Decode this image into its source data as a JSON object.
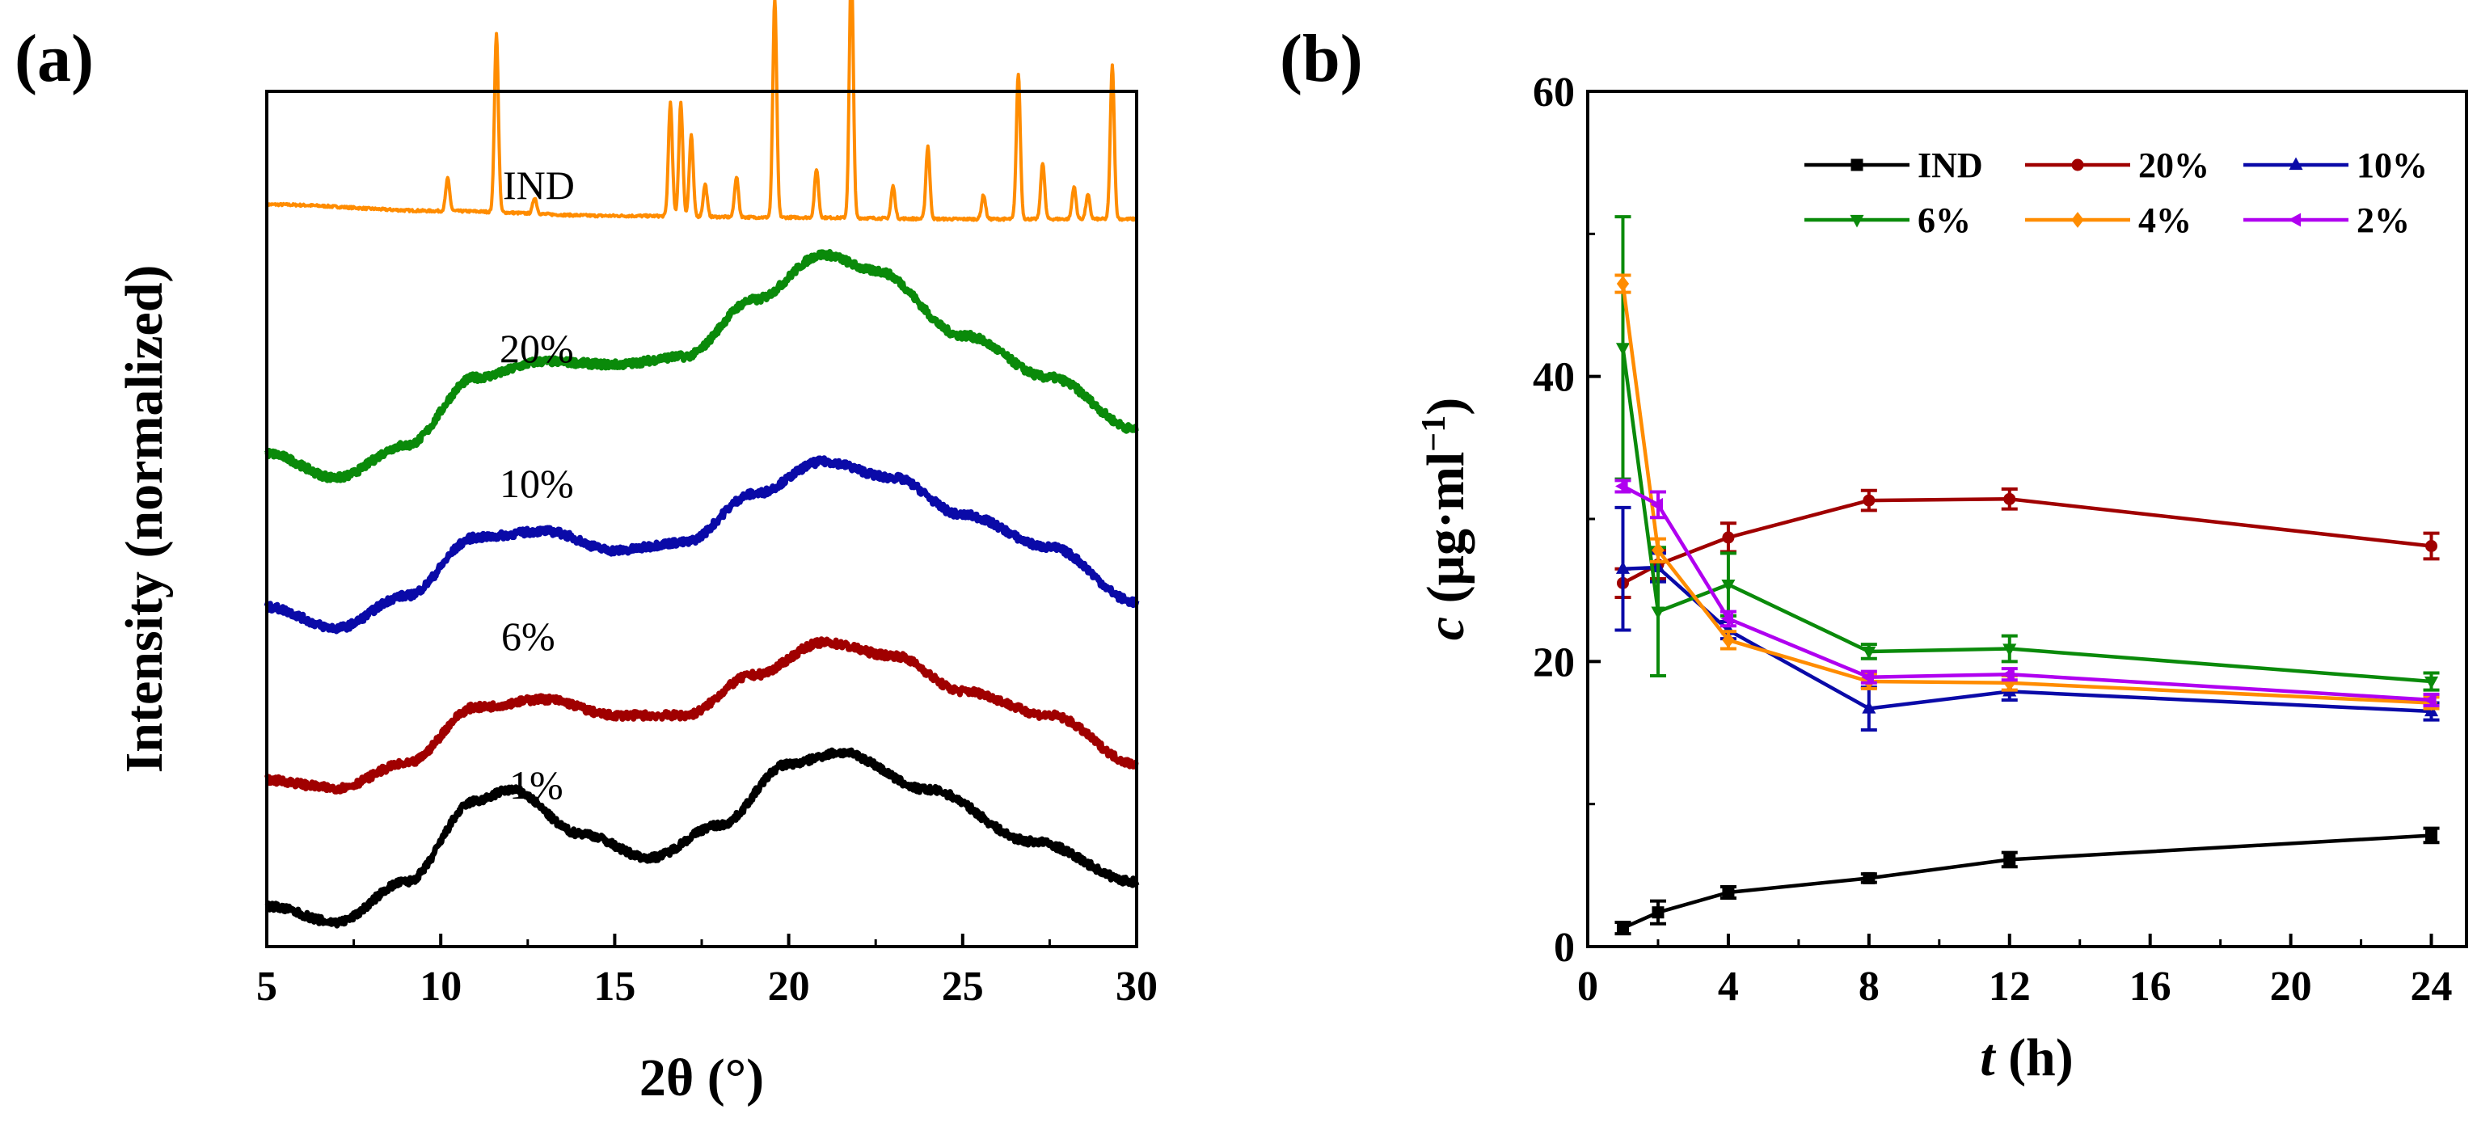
{
  "panels": {
    "a": {
      "label": "(a)"
    },
    "b": {
      "label": "(b)"
    }
  },
  "chart_data": [
    {
      "type": "line",
      "xlabel": "2θ (°)",
      "ylabel": "Intensity (normalized)",
      "xlim": [
        5,
        30
      ],
      "x_ticks": [
        "5",
        "10",
        "15",
        "20",
        "25",
        "30"
      ],
      "y_ticks_shown": false,
      "grid": false,
      "series": [
        {
          "name": "IND",
          "color": "#ff8c00",
          "offset": 4.3,
          "baseline": [
            [
              5,
              0.09
            ],
            [
              10,
              0.05
            ],
            [
              15,
              0.02
            ],
            [
              20,
              0.01
            ],
            [
              25,
              0.0
            ],
            [
              30,
              0.0
            ]
          ],
          "peaks": [
            {
              "x": 10.2,
              "h": 0.2
            },
            {
              "x": 11.6,
              "h": 1.1
            },
            {
              "x": 12.7,
              "h": 0.1
            },
            {
              "x": 16.6,
              "h": 0.7
            },
            {
              "x": 16.9,
              "h": 0.7
            },
            {
              "x": 17.2,
              "h": 0.5
            },
            {
              "x": 17.6,
              "h": 0.2
            },
            {
              "x": 18.5,
              "h": 0.25
            },
            {
              "x": 19.6,
              "h": 1.35
            },
            {
              "x": 20.8,
              "h": 0.3
            },
            {
              "x": 21.8,
              "h": 1.6
            },
            {
              "x": 23.0,
              "h": 0.2
            },
            {
              "x": 24.0,
              "h": 0.45
            },
            {
              "x": 25.6,
              "h": 0.15
            },
            {
              "x": 26.6,
              "h": 0.9
            },
            {
              "x": 27.3,
              "h": 0.35
            },
            {
              "x": 28.2,
              "h": 0.2
            },
            {
              "x": 28.6,
              "h": 0.15
            },
            {
              "x": 29.3,
              "h": 0.95
            }
          ]
        },
        {
          "name": "20%",
          "color": "#0a8a0a",
          "offset": 2.7,
          "profile": [
            [
              5,
              0.15
            ],
            [
              7,
              0.0
            ],
            [
              9,
              0.2
            ],
            [
              11,
              0.62
            ],
            [
              13,
              0.72
            ],
            [
              15,
              0.7
            ],
            [
              17,
              0.75
            ],
            [
              19,
              1.1
            ],
            [
              21,
              1.38
            ],
            [
              22.5,
              1.28
            ],
            [
              25,
              0.88
            ],
            [
              27.5,
              0.62
            ],
            [
              30,
              0.3
            ]
          ]
        },
        {
          "name": "10%",
          "color": "#0a0aa8",
          "offset": 1.75,
          "profile": [
            [
              5,
              0.15
            ],
            [
              7,
              0.02
            ],
            [
              9,
              0.22
            ],
            [
              11,
              0.58
            ],
            [
              13,
              0.62
            ],
            [
              15,
              0.5
            ],
            [
              17,
              0.55
            ],
            [
              19,
              0.85
            ],
            [
              21,
              1.05
            ],
            [
              23,
              0.95
            ],
            [
              25,
              0.72
            ],
            [
              27.5,
              0.52
            ],
            [
              30,
              0.18
            ]
          ]
        },
        {
          "name": "6%",
          "color": "#a00000",
          "offset": 0.78,
          "profile": [
            [
              5,
              0.05
            ],
            [
              7,
              0.0
            ],
            [
              9,
              0.15
            ],
            [
              11,
              0.5
            ],
            [
              13,
              0.55
            ],
            [
              15,
              0.45
            ],
            [
              17,
              0.45
            ],
            [
              19,
              0.7
            ],
            [
              21,
              0.9
            ],
            [
              23,
              0.82
            ],
            [
              25,
              0.6
            ],
            [
              27.5,
              0.45
            ],
            [
              30,
              0.15
            ]
          ]
        },
        {
          "name": "1%",
          "color": "#000000",
          "offset": -0.05,
          "profile": [
            [
              5,
              0.1
            ],
            [
              7,
              0.0
            ],
            [
              9,
              0.25
            ],
            [
              11,
              0.75
            ],
            [
              12,
              0.82
            ],
            [
              14,
              0.55
            ],
            [
              16,
              0.4
            ],
            [
              18,
              0.6
            ],
            [
              20,
              0.98
            ],
            [
              21.5,
              1.05
            ],
            [
              24,
              0.82
            ],
            [
              27,
              0.5
            ],
            [
              30,
              0.25
            ]
          ]
        }
      ]
    },
    {
      "type": "line",
      "xlabel": "t (h)",
      "ylabel": "c (μg·ml−1)",
      "xlim": [
        0,
        25
      ],
      "ylim": [
        0,
        60
      ],
      "x_ticks": [
        0,
        4,
        8,
        12,
        16,
        20,
        24
      ],
      "y_ticks": [
        0,
        20,
        40,
        60
      ],
      "legend": "top-right",
      "grid": false,
      "x": [
        1,
        2,
        4,
        8,
        12,
        24
      ],
      "series": [
        {
          "name": "IND",
          "color": "#000000",
          "marker": "square",
          "values": [
            1.3,
            2.4,
            3.8,
            4.8,
            6.1,
            7.8
          ],
          "errors": [
            0.4,
            0.8,
            0.4,
            0.3,
            0.5,
            0.5
          ]
        },
        {
          "name": "20%",
          "color": "#a00000",
          "marker": "circle",
          "values": [
            25.5,
            26.8,
            28.7,
            31.3,
            31.4,
            28.1
          ],
          "errors": [
            1.0,
            1.0,
            1.0,
            0.7,
            0.7,
            0.9
          ]
        },
        {
          "name": "10%",
          "color": "#0a0aa8",
          "marker": "triangle-up",
          "values": [
            26.5,
            26.6,
            22.2,
            16.7,
            17.9,
            16.5
          ],
          "errors": [
            4.3,
            1.0,
            0.6,
            1.5,
            0.6,
            0.6
          ]
        },
        {
          "name": "6%",
          "color": "#0a8a0a",
          "marker": "triangle-down",
          "values": [
            42.0,
            23.5,
            25.4,
            20.7,
            20.9,
            18.6
          ],
          "errors": [
            9.2,
            4.5,
            2.2,
            0.5,
            0.9,
            0.6
          ]
        },
        {
          "name": "4%",
          "color": "#ff8c00",
          "marker": "diamond",
          "values": [
            46.5,
            27.8,
            21.5,
            18.6,
            18.5,
            17.1
          ],
          "errors": [
            0.6,
            0.8,
            0.6,
            0.5,
            0.5,
            0.4
          ]
        },
        {
          "name": "2%",
          "color": "#b000f0",
          "marker": "triangle-left",
          "values": [
            32.3,
            31.0,
            23.0,
            18.9,
            19.1,
            17.3
          ],
          "errors": [
            0.4,
            0.9,
            0.5,
            0.4,
            0.4,
            0.4
          ]
        }
      ]
    }
  ]
}
